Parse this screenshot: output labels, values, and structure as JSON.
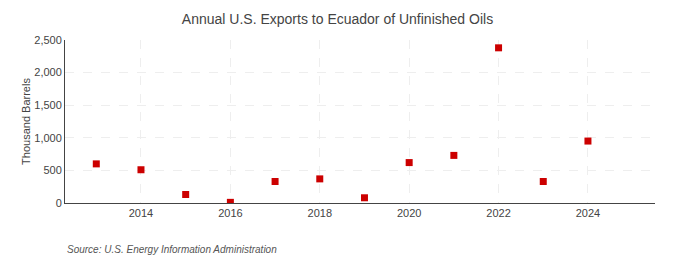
{
  "chart_data": {
    "type": "scatter",
    "title": "Annual U.S. Exports to Ecuador of Unfinished Oils",
    "ylabel": "Thousand Barrels",
    "annotations": [
      "Source: U.S. Energy Information Administration"
    ],
    "x": [
      2013,
      2014,
      2015,
      2016,
      2017,
      2018,
      2019,
      2020,
      2021,
      2022,
      2023,
      2024
    ],
    "values": [
      600,
      510,
      130,
      10,
      330,
      370,
      80,
      620,
      730,
      2380,
      330,
      950
    ],
    "color": "#cc0000",
    "marker": "square",
    "xlim": [
      2012.3,
      2025.5
    ],
    "xticks": [
      2014,
      2016,
      2018,
      2020,
      2022,
      2024
    ],
    "ylim": [
      0,
      2500
    ],
    "yticks": [
      0,
      500,
      {
        "value": 1000,
        "label": "1,000"
      },
      {
        "value": 1500,
        "label": "1,500"
      },
      {
        "value": 2000,
        "label": "2,000"
      },
      {
        "value": 2500,
        "label": "2,500"
      }
    ],
    "grid": true
  }
}
